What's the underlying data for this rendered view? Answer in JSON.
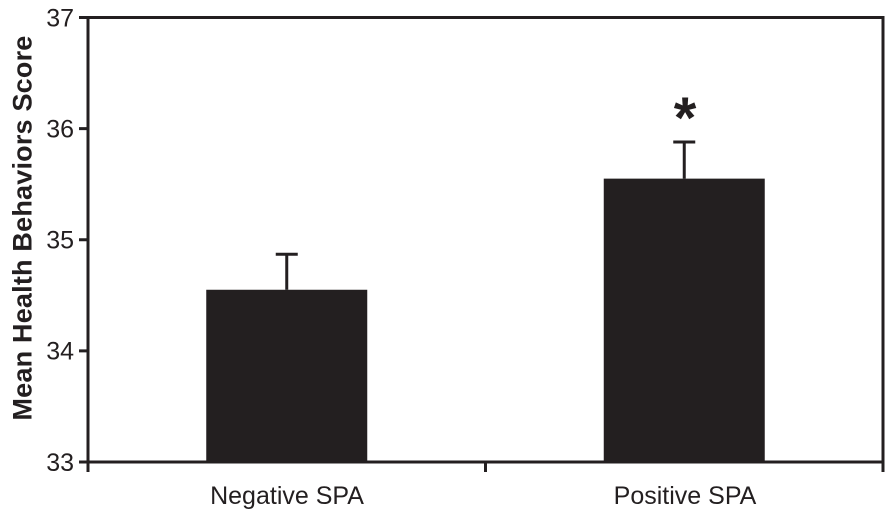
{
  "figure": {
    "background": "#ffffff",
    "ink_color": "#231f20"
  },
  "chart_data": {
    "type": "bar",
    "title": "",
    "categories": [
      "Negative SPA",
      "Positive SPA"
    ],
    "values": [
      34.55,
      35.55
    ],
    "errors_upper": [
      0.32,
      0.33
    ],
    "ylabel": "Mean Health Behaviors Score",
    "xlabel": "",
    "ylim": [
      33,
      37
    ],
    "yticks": [
      33,
      34,
      35,
      36,
      37
    ],
    "grid": false,
    "legend_position": "none",
    "bar_color": "#231f20",
    "frame": "full-box",
    "significance_marker": {
      "symbol": "*",
      "category_index": 1
    }
  }
}
